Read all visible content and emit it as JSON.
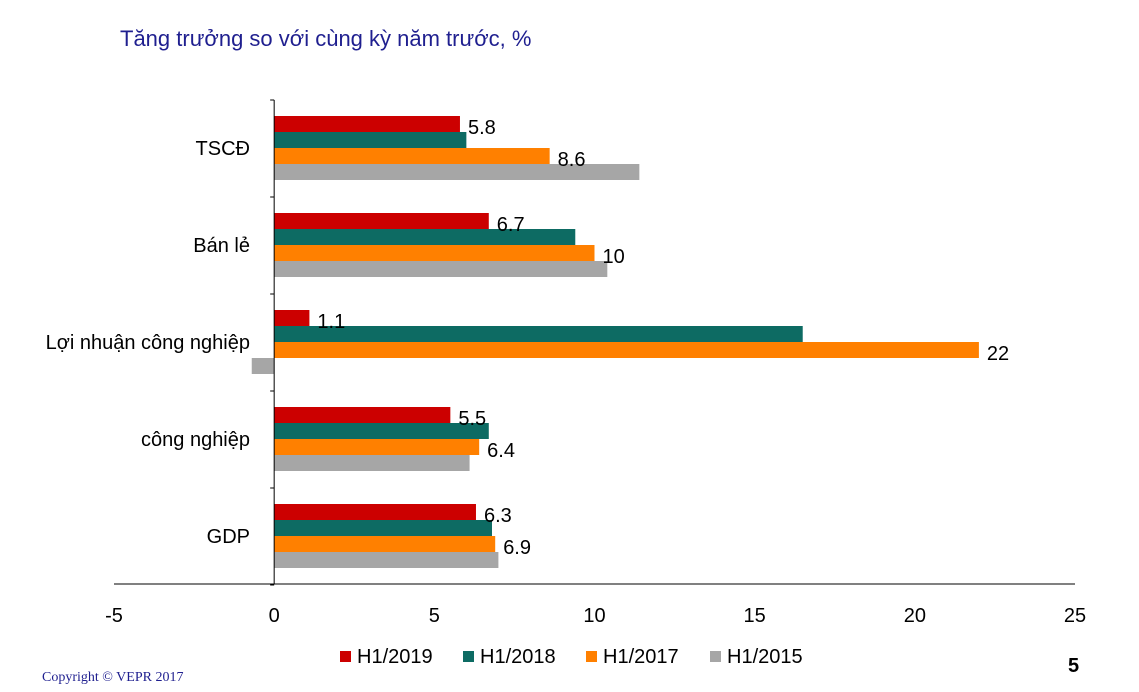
{
  "title": "Tăng trưởng so với cùng kỳ năm trước, %",
  "copyright": "Copyright © VEPR 2017",
  "page_number": "5",
  "chart_data": {
    "type": "bar",
    "orientation": "horizontal",
    "title": "Tăng trưởng so với cùng kỳ năm trước, %",
    "categories": [
      "TSCĐ",
      "Bán lẻ",
      "Lợi nhuận công nghiệp",
      "công nghiệp",
      "GDP"
    ],
    "xlim": [
      -5,
      25
    ],
    "x_ticks": [
      -5,
      0,
      5,
      10,
      15,
      20,
      25
    ],
    "legend_position": "bottom",
    "series": [
      {
        "name": "H1/2019",
        "color": "#cc0000",
        "values": [
          5.8,
          6.7,
          1.1,
          5.5,
          6.3
        ],
        "labels": [
          "5.8",
          "6.7",
          "1.1",
          "5.5",
          "6.3"
        ]
      },
      {
        "name": "H1/2018",
        "color": "#0d6b63",
        "values": [
          6.0,
          9.4,
          16.5,
          6.7,
          6.8
        ],
        "labels": [
          "",
          "",
          "",
          "",
          ""
        ]
      },
      {
        "name": "H1/2017",
        "color": "#ff8000",
        "values": [
          8.6,
          10,
          22,
          6.4,
          6.9
        ],
        "labels": [
          "8.6",
          "10",
          "22",
          "6.4",
          "6.9"
        ]
      },
      {
        "name": "H1/2015",
        "color": "#a6a6a6",
        "values": [
          11.4,
          10.4,
          -0.7,
          6.1,
          7.0
        ],
        "labels": [
          "",
          "",
          "",
          "",
          ""
        ]
      }
    ]
  }
}
